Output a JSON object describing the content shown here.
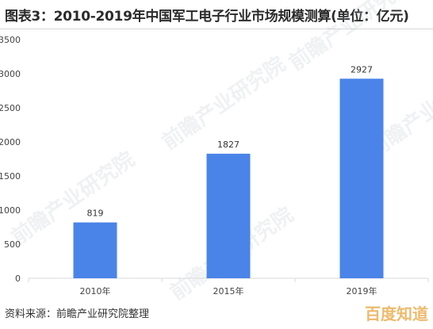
{
  "title": "图表3：2010-2019年中国军工电子行业市场规模测算(单位：亿元)",
  "source": "资料来源：前瞻产业研究院整理",
  "watermark": "前瞻产业研究院",
  "corner_watermark": "百度知道",
  "colors": {
    "bar": "#4a84e8",
    "axis": "#d9d9d9",
    "tick_text": "#444444"
  },
  "chart_data": {
    "type": "bar",
    "title": "2010-2019年中国军工电子行业市场规模测算(单位：亿元)",
    "categories": [
      "2010年",
      "2015年",
      "2019年"
    ],
    "values": [
      819,
      1827,
      2927
    ],
    "data_labels": [
      "819",
      "1827",
      "2927"
    ],
    "yticks": [
      "0",
      "500",
      "1000",
      "1500",
      "2000",
      "2500",
      "3000",
      "3500"
    ],
    "ylim": [
      0,
      3500
    ],
    "xlabel": "",
    "ylabel": "",
    "grid": false,
    "legend": "none"
  }
}
